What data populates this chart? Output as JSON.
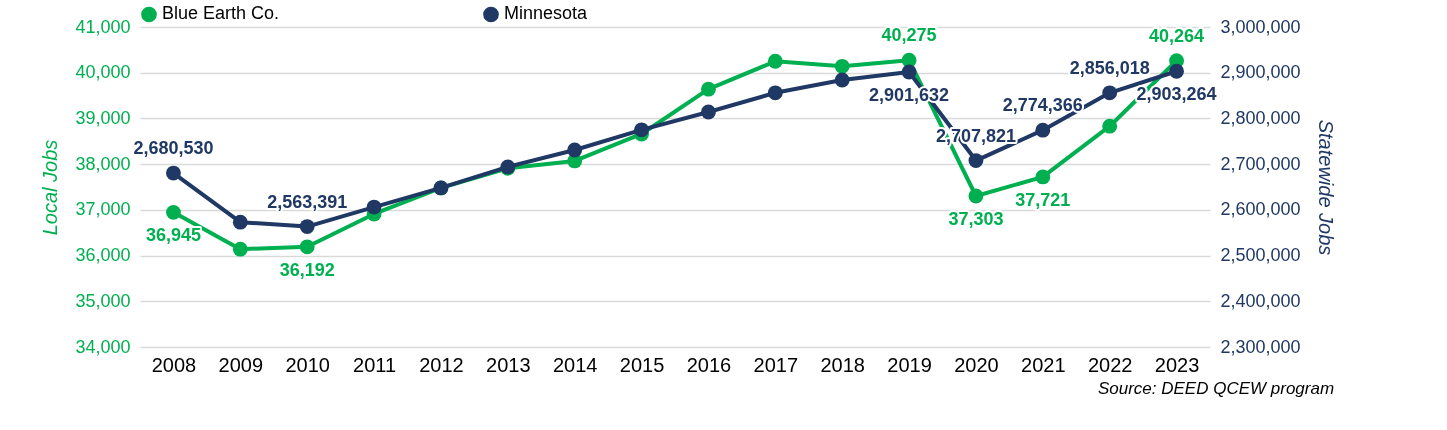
{
  "chart_data": {
    "type": "line",
    "ylabel": "Local Jobs",
    "y2label": "Statewide Jobs",
    "annotations": [
      "Source: DEED QCEW program"
    ],
    "categories": [
      "2008",
      "2009",
      "2010",
      "2011",
      "2012",
      "2013",
      "2014",
      "2015",
      "2016",
      "2017",
      "2018",
      "2019",
      "2020",
      "2021",
      "2022",
      "2023"
    ],
    "series": [
      {
        "name": "Blue Earth Co.",
        "color": "#00b050",
        "values": [
          36945,
          36140,
          36192,
          36910,
          37480,
          37910,
          38070,
          38660,
          39640,
          40250,
          40140,
          40275,
          37303,
          37721,
          38830,
          40264
        ],
        "value_labels": [
          "36,945",
          null,
          "36,192",
          null,
          null,
          null,
          null,
          null,
          null,
          null,
          null,
          "40,275",
          "37,303",
          "37,721",
          null,
          "40,264"
        ]
      },
      {
        "name": "Minnesota",
        "color": "#203864",
        "axis": "y2",
        "values": [
          2680530,
          2573000,
          2563391,
          2606000,
          2648000,
          2694000,
          2731000,
          2775000,
          2814000,
          2856000,
          2884000,
          2901632,
          2707821,
          2774366,
          2856018,
          2903264
        ],
        "value_labels": [
          "2,680,530",
          null,
          "2,563,391",
          null,
          null,
          null,
          null,
          null,
          null,
          null,
          null,
          "2,901,632",
          "2,707,821",
          "2,774,366",
          "2,856,018",
          "2,903,264"
        ]
      }
    ],
    "ylim": [
      34000,
      41000
    ],
    "yticks": [
      {
        "value": 34000,
        "label": "34,000"
      },
      {
        "value": 35000,
        "label": "35,000"
      },
      {
        "value": 36000,
        "label": "36,000"
      },
      {
        "value": 37000,
        "label": "37,000"
      },
      {
        "value": 38000,
        "label": "38,000"
      },
      {
        "value": 39000,
        "label": "39,000"
      },
      {
        "value": 40000,
        "label": "40,000"
      },
      {
        "value": 41000,
        "label": "41,000"
      }
    ],
    "y2lim": [
      2300000,
      3000000
    ],
    "y2ticks": [
      {
        "value": 2300000,
        "label": "2,300,000"
      },
      {
        "value": 2400000,
        "label": "2,400,000"
      },
      {
        "value": 2500000,
        "label": "2,500,000"
      },
      {
        "value": 2600000,
        "label": "2,600,000"
      },
      {
        "value": 2700000,
        "label": "2,700,000"
      },
      {
        "value": 2800000,
        "label": "2,800,000"
      },
      {
        "value": 2900000,
        "label": "2,900,000"
      },
      {
        "value": 3000000,
        "label": "3,000,000"
      }
    ],
    "grid": "y",
    "legend": "top",
    "marker": "circle",
    "line_style": "solid"
  }
}
